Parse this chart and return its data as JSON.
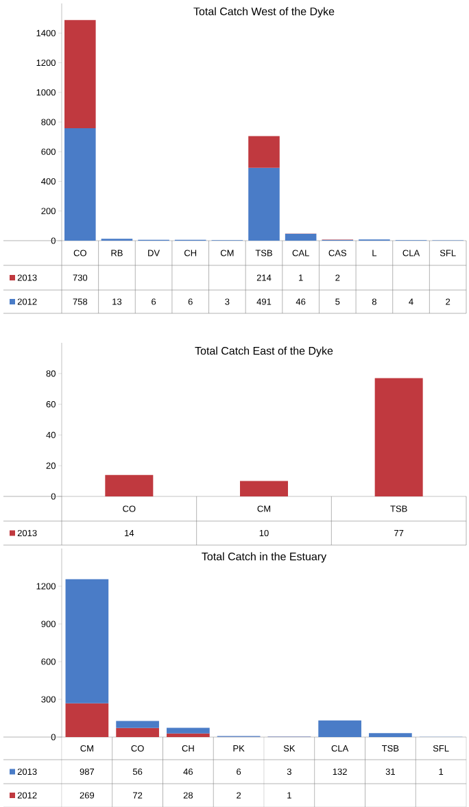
{
  "chart_data": [
    {
      "type": "bar",
      "title": "Total Catch West of the Dyke",
      "stacked": true,
      "data_labels": true,
      "legend": "bottom",
      "categories": [
        "CO",
        "RB",
        "DV",
        "CH",
        "CM",
        "TSB",
        "CAL",
        "CAS",
        "L",
        "CLA",
        "SFL"
      ],
      "series": [
        {
          "name": "2012",
          "color": "#4a7cc7",
          "values": [
            758,
            13,
            6,
            6,
            3,
            491,
            46,
            5,
            8,
            4,
            2
          ]
        },
        {
          "name": "2013",
          "color": "#c0393f",
          "values": [
            730,
            null,
            null,
            null,
            null,
            214,
            1,
            2,
            null,
            null,
            null
          ]
        }
      ],
      "ylim": [
        0,
        1600
      ],
      "yticks": [
        0,
        200,
        400,
        600,
        800,
        1000,
        1200,
        1400
      ]
    },
    {
      "type": "bar",
      "title": "Total Catch East of the Dyke",
      "data_labels": true,
      "legend": "bottom",
      "categories": [
        "CO",
        "CM",
        "TSB"
      ],
      "series": [
        {
          "name": "2013",
          "color": "#c0393f",
          "values": [
            14,
            10,
            77
          ]
        }
      ],
      "ylim": [
        0,
        100
      ],
      "yticks": [
        0,
        20,
        40,
        60,
        80
      ]
    },
    {
      "type": "bar",
      "title": "Total Catch in the Estuary",
      "stacked": true,
      "data_labels": true,
      "legend": "bottom",
      "categories": [
        "CM",
        "CO",
        "CH",
        "PK",
        "SK",
        "CLA",
        "TSB",
        "SFL"
      ],
      "series": [
        {
          "name": "2012",
          "color": "#c0393f",
          "values": [
            269,
            72,
            28,
            2,
            1,
            null,
            null,
            null
          ]
        },
        {
          "name": "2013",
          "color": "#4a7cc7",
          "values": [
            987,
            56,
            46,
            6,
            3,
            132,
            31,
            1
          ]
        }
      ],
      "ylim": [
        0,
        1500
      ],
      "yticks": [
        0,
        300,
        600,
        900,
        1200
      ]
    }
  ]
}
